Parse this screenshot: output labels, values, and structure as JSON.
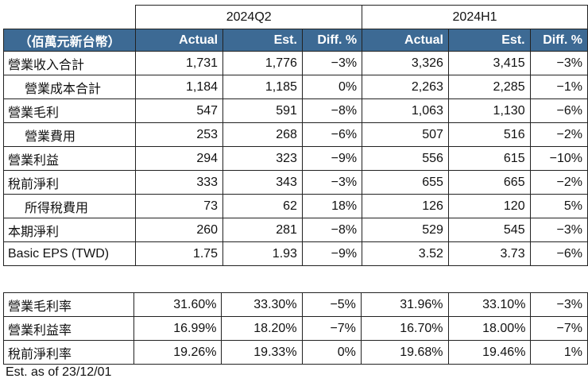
{
  "periods": [
    "2024Q2",
    "2024H1"
  ],
  "header": {
    "unit": "（佰萬元新台幣）",
    "actual": "Actual",
    "est": "Est.",
    "diff": "Diff. %"
  },
  "rows": [
    {
      "label": "營業收入合計",
      "indent": false,
      "q_actual": "1,731",
      "q_est": "1,776",
      "q_diff": "−3%",
      "h_actual": "3,326",
      "h_est": "3,415",
      "h_diff": "−3%"
    },
    {
      "label": "營業成本合計",
      "indent": true,
      "q_actual": "1,184",
      "q_est": "1,185",
      "q_diff": "0%",
      "h_actual": "2,263",
      "h_est": "2,285",
      "h_diff": "−1%"
    },
    {
      "label": "營業毛利",
      "indent": false,
      "q_actual": "547",
      "q_est": "591",
      "q_diff": "−8%",
      "h_actual": "1,063",
      "h_est": "1,130",
      "h_diff": "−6%"
    },
    {
      "label": "營業費用",
      "indent": true,
      "q_actual": "253",
      "q_est": "268",
      "q_diff": "−6%",
      "h_actual": "507",
      "h_est": "516",
      "h_diff": "−2%"
    },
    {
      "label": "營業利益",
      "indent": false,
      "q_actual": "294",
      "q_est": "323",
      "q_diff": "−9%",
      "h_actual": "556",
      "h_est": "615",
      "h_diff": "−10%"
    },
    {
      "label": "稅前淨利",
      "indent": false,
      "q_actual": "333",
      "q_est": "343",
      "q_diff": "−3%",
      "h_actual": "655",
      "h_est": "665",
      "h_diff": "−2%"
    },
    {
      "label": "所得稅費用",
      "indent": true,
      "q_actual": "73",
      "q_est": "62",
      "q_diff": "18%",
      "h_actual": "126",
      "h_est": "120",
      "h_diff": "5%"
    },
    {
      "label": "本期淨利",
      "indent": false,
      "q_actual": "260",
      "q_est": "281",
      "q_diff": "−8%",
      "h_actual": "529",
      "h_est": "545",
      "h_diff": "−3%"
    },
    {
      "label": "Basic EPS (TWD)",
      "indent": false,
      "q_actual": "1.75",
      "q_est": "1.93",
      "q_diff": "−9%",
      "h_actual": "3.52",
      "h_est": "3.73",
      "h_diff": "−6%"
    }
  ],
  "ratios": [
    {
      "label": "營業毛利率",
      "q_actual": "31.60%",
      "q_est": "33.30%",
      "q_diff": "−5%",
      "h_actual": "31.96%",
      "h_est": "33.10%",
      "h_diff": "−3%"
    },
    {
      "label": "營業利益率",
      "q_actual": "16.99%",
      "q_est": "18.20%",
      "q_diff": "−7%",
      "h_actual": "16.70%",
      "h_est": "18.00%",
      "h_diff": "−7%"
    },
    {
      "label": "稅前淨利率",
      "q_actual": "19.26%",
      "q_est": "19.33%",
      "q_diff": "0%",
      "h_actual": "19.68%",
      "h_est": "19.46%",
      "h_diff": "1%"
    }
  ],
  "note": "Est. as of 23/12/01"
}
